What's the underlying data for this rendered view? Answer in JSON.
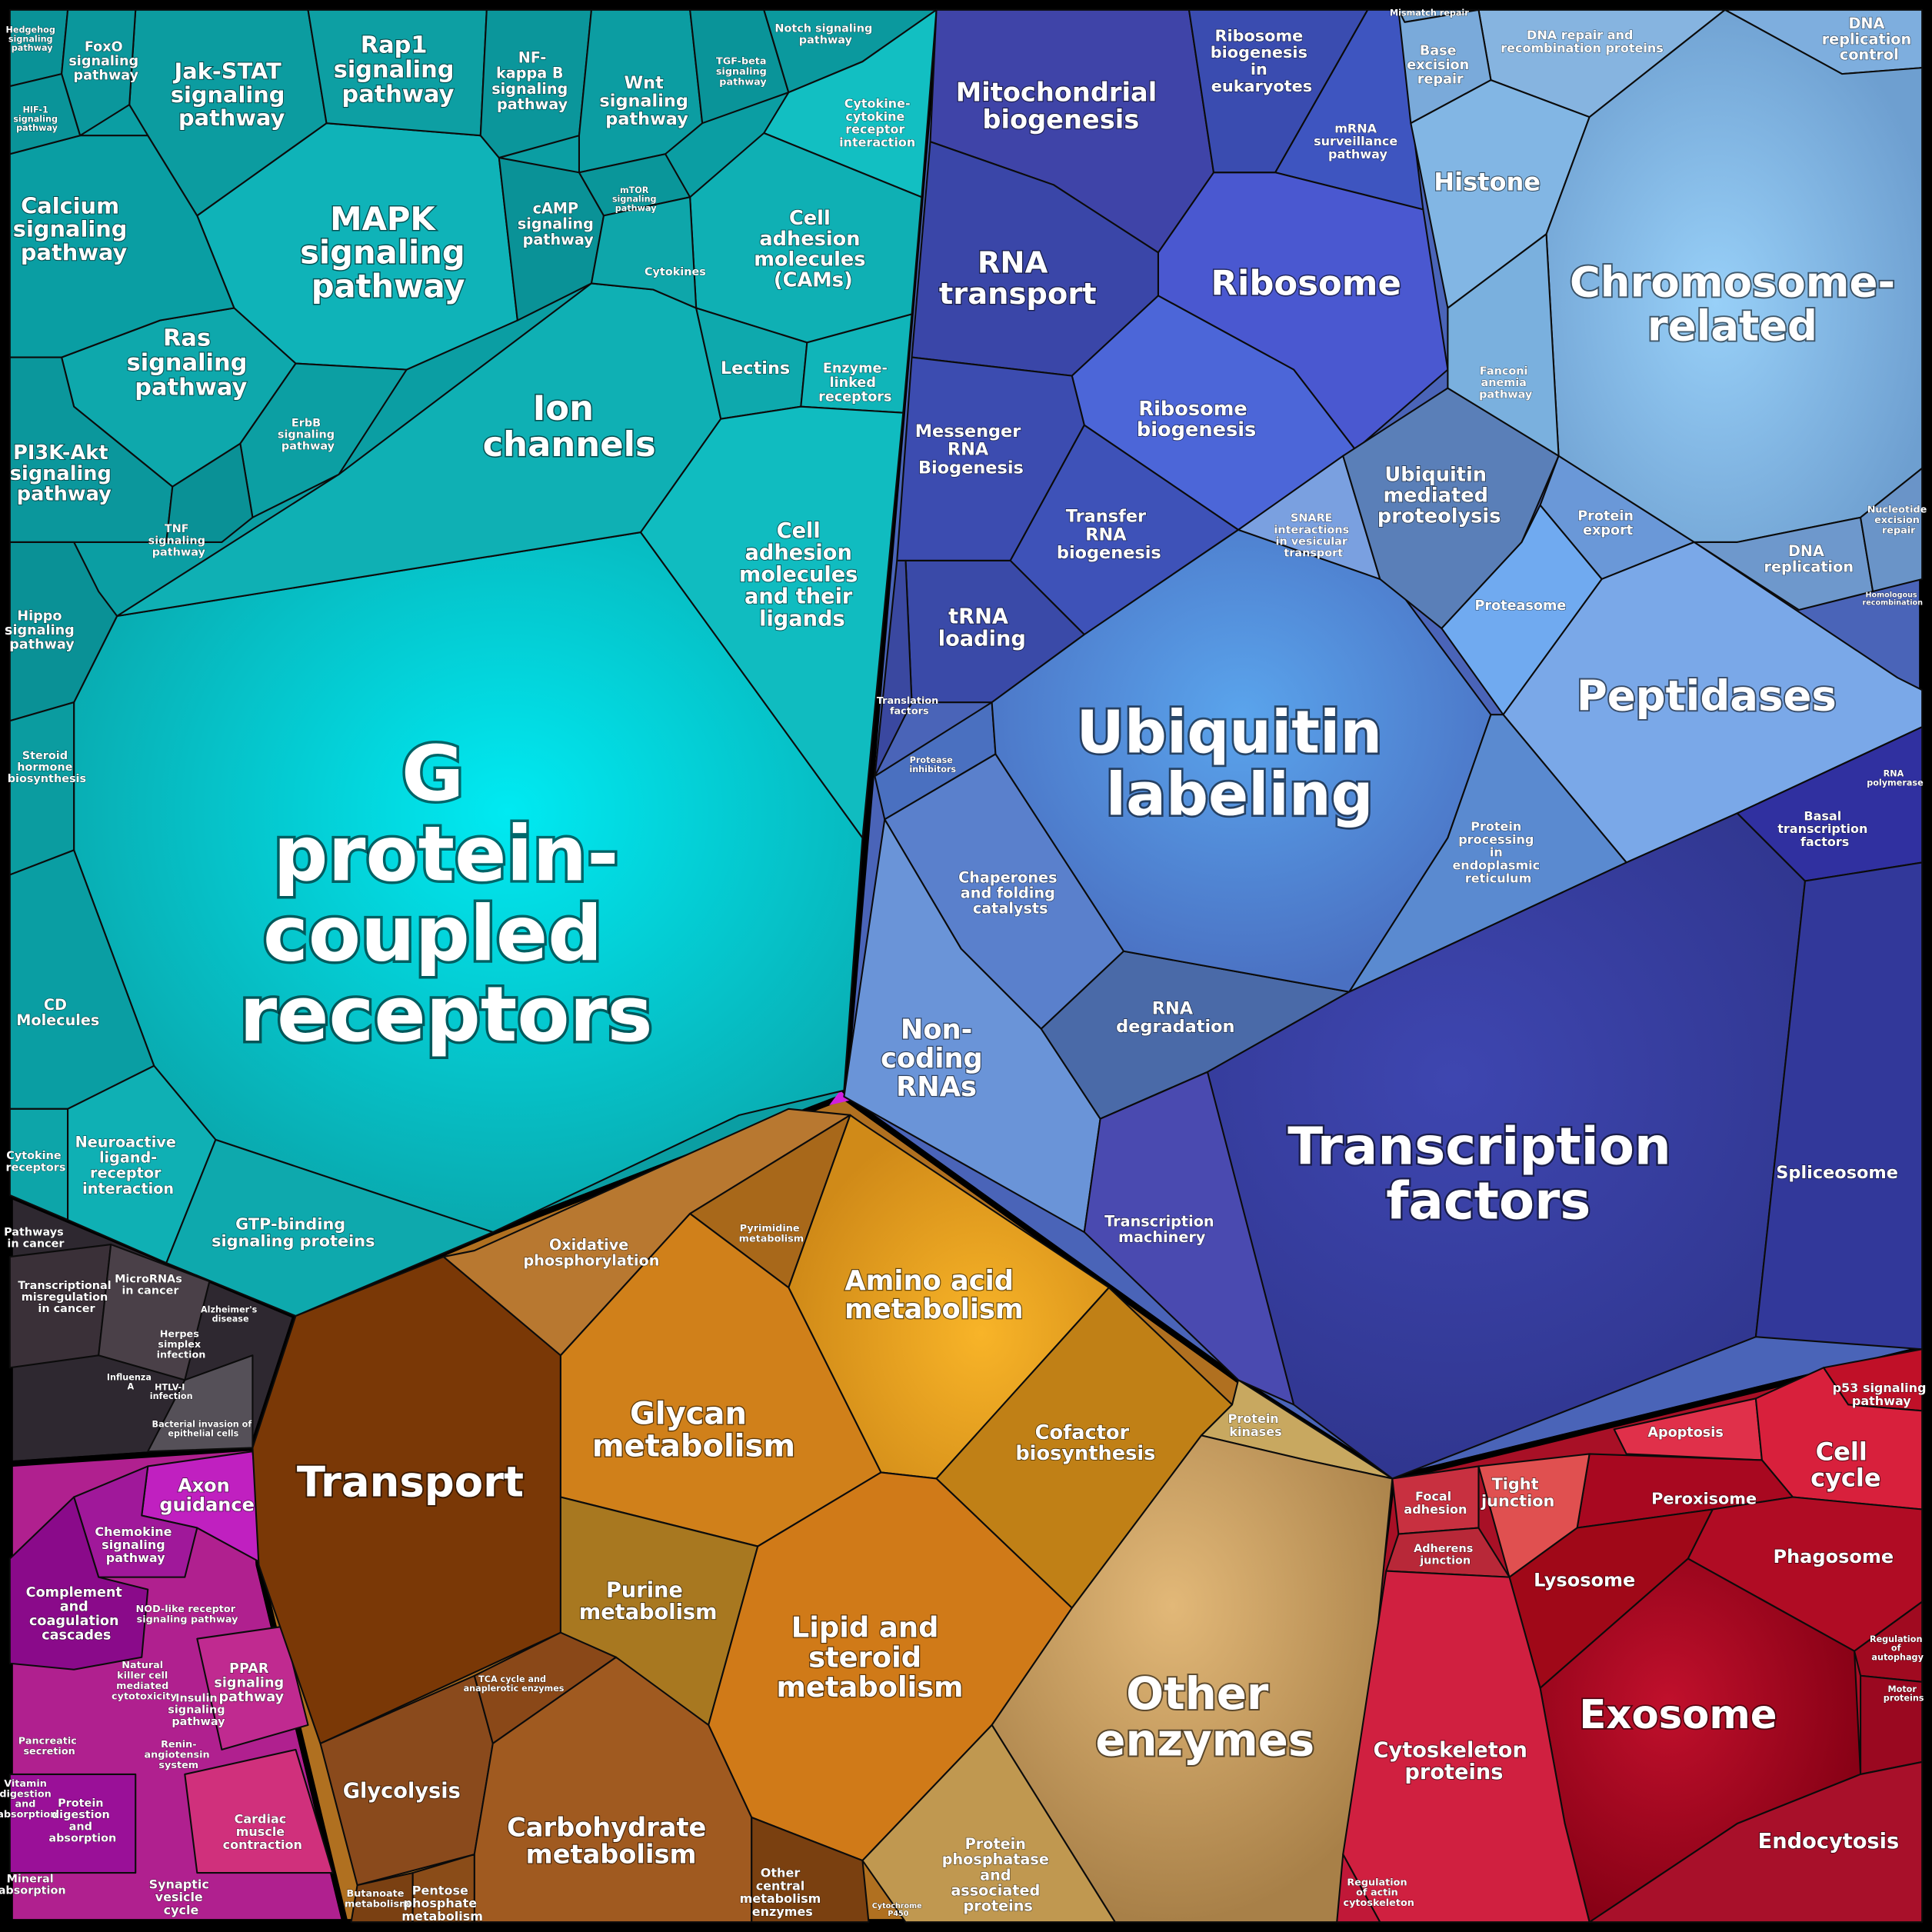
{
  "cells": [
    "G protein-coupled receptors",
    "Ion channels",
    "MAPK signaling pathway",
    "Ras signaling pathway",
    "Calcium signaling pathway",
    "PI3K-Akt signaling pathway",
    "Jak-STAT signaling pathway",
    "Rap1 signaling pathway",
    "NF-kappa B signaling pathway",
    "Wnt signaling pathway",
    "TGF-beta signaling pathway",
    "Notch signaling pathway",
    "Cytokine-cytokine receptor interaction",
    "Cell adhesion molecules (CAMs)",
    "cAMP signaling pathway",
    "mTOR signaling pathway",
    "Cytokines",
    "Lectins",
    "Enzyme-linked receptors",
    "Cell adhesion molecules and their ligands",
    "ErbB signaling pathway",
    "TNF signaling pathway",
    "Hippo signaling pathway",
    "Steroid hormone biosynthesis",
    "CD Molecules",
    "Cytokine receptors",
    "Neuroactive ligand-receptor interaction",
    "GTP-binding signaling proteins",
    "Hedgehog signaling pathway",
    "FoxO signaling pathway",
    "HIF-1 signaling pathway",
    "Pathways in cancer",
    "Transcriptional misregulation in cancer",
    "MicroRNAs in cancer",
    "Herpes simplex infection",
    "Alzheimer's disease",
    "Influenza A",
    "HTLV-I infection",
    "Bacterial invasion of epithelial cells",
    "Axon guidance",
    "Chemokine signaling pathway",
    "Complement and coagulation cascades",
    "NOD-like receptor signaling pathway",
    "Natural killer cell mediated cytotoxicity",
    "PPAR signaling pathway",
    "Insulin signaling pathway",
    "Renin-angiotensin system",
    "Pancreatic secretion",
    "Vitamin digestion and absorption",
    "Protein digestion and absorption",
    "Cardiac muscle contraction",
    "Synaptic vesicle cycle",
    "Mineral absorption",
    "Transport",
    "Oxidative phosphorylation",
    "Pyrimidine metabolism",
    "Amino acid metabolism",
    "Glycan metabolism",
    "Cofactor biosynthesis",
    "Purine metabolism",
    "Lipid and steroid metabolism",
    "Protein kinases",
    "Other enzymes",
    "Protein phosphatase and associated proteins",
    "Glycolysis",
    "TCA cycle and anaplerotic enzymes",
    "Carbohydrate metabolism",
    "Other central metabolism enzymes",
    "Butanoate metabolism",
    "Pentose phosphate metabolism",
    "Cytochrome P450",
    "Mitochondrial biogenesis",
    "Ribosome biogenesis in eukaryotes",
    "mRNA surveillance pathway",
    "Ribosome",
    "RNA transport",
    "Ribosome biogenesis",
    "Messenger RNA Biogenesis",
    "Transfer RNA biogenesis",
    "tRNA loading",
    "Translation factors",
    "Protease inhibitors",
    "Chaperones and folding catalysts",
    "Non-coding RNAs",
    "RNA degradation",
    "Ubiquitin labeling",
    "SNARE interactions in vesicular transport",
    "Ubiquitin mediated proteolysis",
    "Protein export",
    "Proteasome",
    "Peptidases",
    "Protein processing in endoplasmic reticulum",
    "Transcription factors",
    "Transcription machinery",
    "Basal transcription factors",
    "RNA polymerase",
    "Spliceosome",
    "Mismatch repair",
    "DNA repair and recombination proteins",
    "DNA replication control",
    "Base excision repair",
    "Histone",
    "Chromosome-related",
    "Fanconi anemia pathway",
    "DNA replication",
    "Nucleotide excision repair",
    "Homologous recombination",
    "p53 signaling pathway",
    "Apoptosis",
    "Cell cycle",
    "Peroxisome",
    "Tight junction",
    "Focal adhesion",
    "Adherens junction",
    "Lysosome",
    "Phagosome",
    "Exosome",
    "Cytoskeleton proteins",
    "Regulation of actin cytoskeleton",
    "Regulation of autophagy",
    "Motor proteins",
    "Endocytosis"
  ]
}
